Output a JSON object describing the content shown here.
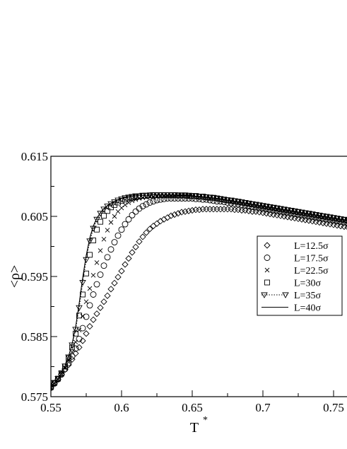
{
  "chart_data": {
    "type": "scatter",
    "title": "",
    "xlabel": "T",
    "xlabel_superscript": "*",
    "ylabel": "<ρ>",
    "xlim": [
      0.55,
      0.76
    ],
    "ylim": [
      0.575,
      0.615
    ],
    "x_ticks": [
      0.55,
      0.6,
      0.65,
      0.7,
      0.75
    ],
    "y_ticks": [
      0.575,
      0.585,
      0.595,
      0.605,
      0.615
    ],
    "x_tick_labels": [
      "0.55",
      "0.6",
      "0.65",
      "0.7",
      "0.75"
    ],
    "y_tick_labels": [
      "0.575",
      "0.585",
      "0.595",
      "0.605",
      "0.615"
    ],
    "grid": false,
    "legend_position": "right",
    "series": [
      {
        "name": "L=12.5σ",
        "marker": "diamond",
        "x": [
          0.55,
          0.5525,
          0.555,
          0.5575,
          0.56,
          0.5625,
          0.565,
          0.5675,
          0.57,
          0.5725,
          0.575,
          0.5775,
          0.58,
          0.5825,
          0.585,
          0.5875,
          0.59,
          0.5925,
          0.595,
          0.5975,
          0.6,
          0.6025,
          0.605,
          0.6075,
          0.61,
          0.6125,
          0.615,
          0.6175,
          0.62,
          0.6225,
          0.625,
          0.6275,
          0.63,
          0.6325,
          0.635,
          0.6375,
          0.64,
          0.6425,
          0.645,
          0.6475,
          0.65,
          0.6525,
          0.655,
          0.6575,
          0.66,
          0.6625,
          0.665,
          0.6675,
          0.67,
          0.6725,
          0.675,
          0.6775,
          0.68,
          0.6825,
          0.685,
          0.6875,
          0.69,
          0.6925,
          0.695,
          0.6975,
          0.7,
          0.7025,
          0.705,
          0.7075,
          0.71,
          0.7125,
          0.715,
          0.7175,
          0.72,
          0.7225,
          0.725,
          0.7275,
          0.73,
          0.7325,
          0.735,
          0.7375,
          0.74,
          0.7425,
          0.745,
          0.7475,
          0.75,
          0.7525,
          0.755,
          0.7575,
          0.76
        ],
        "y": [
          0.5765,
          0.5772,
          0.5779,
          0.5787,
          0.5795,
          0.5803,
          0.5812,
          0.5822,
          0.5832,
          0.5843,
          0.5855,
          0.5867,
          0.5878,
          0.5888,
          0.5898,
          0.5908,
          0.5918,
          0.5929,
          0.5939,
          0.5949,
          0.5959,
          0.597,
          0.598,
          0.599,
          0.5999,
          0.6008,
          0.6016,
          0.6023,
          0.6029,
          0.6034,
          0.6038,
          0.6042,
          0.6045,
          0.6048,
          0.6051,
          0.6053,
          0.6055,
          0.6057,
          0.6058,
          0.6059,
          0.606,
          0.6061,
          0.6061,
          0.6062,
          0.6062,
          0.6062,
          0.6062,
          0.6062,
          0.6062,
          0.6062,
          0.6062,
          0.6062,
          0.6061,
          0.6061,
          0.606,
          0.606,
          0.6059,
          0.6058,
          0.6058,
          0.6057,
          0.6056,
          0.6055,
          0.6054,
          0.6053,
          0.6052,
          0.6051,
          0.605,
          0.6049,
          0.6048,
          0.6047,
          0.6046,
          0.6045,
          0.6044,
          0.6043,
          0.6042,
          0.6041,
          0.604,
          0.6039,
          0.6038,
          0.6037,
          0.6036,
          0.6035,
          0.6034,
          0.6033,
          0.6032
        ]
      },
      {
        "name": "L=17.5σ",
        "marker": "circle",
        "x": [
          0.55,
          0.5525,
          0.555,
          0.5575,
          0.56,
          0.5625,
          0.565,
          0.5675,
          0.57,
          0.5725,
          0.575,
          0.5775,
          0.58,
          0.5825,
          0.585,
          0.5875,
          0.59,
          0.5925,
          0.595,
          0.5975,
          0.6,
          0.6025,
          0.605,
          0.6075,
          0.61,
          0.6125,
          0.615,
          0.6175,
          0.62,
          0.6225,
          0.625,
          0.6275,
          0.63,
          0.6325,
          0.635,
          0.6375,
          0.64,
          0.6425,
          0.645,
          0.6475,
          0.65,
          0.6525,
          0.655,
          0.6575,
          0.66,
          0.6625,
          0.665,
          0.6675,
          0.67,
          0.6725,
          0.675,
          0.6775,
          0.68,
          0.6825,
          0.685,
          0.6875,
          0.69,
          0.6925,
          0.695,
          0.6975,
          0.7,
          0.7025,
          0.705,
          0.7075,
          0.71,
          0.7125,
          0.715,
          0.7175,
          0.72,
          0.7225,
          0.725,
          0.7275,
          0.73,
          0.7325,
          0.735,
          0.7375,
          0.74,
          0.7425,
          0.745,
          0.7475,
          0.75,
          0.7525,
          0.755,
          0.7575,
          0.76
        ],
        "y": [
          0.5765,
          0.5772,
          0.5779,
          0.5787,
          0.5796,
          0.5806,
          0.5817,
          0.583,
          0.5846,
          0.5864,
          0.5883,
          0.5902,
          0.592,
          0.5937,
          0.5953,
          0.5968,
          0.5982,
          0.5995,
          0.6007,
          0.6018,
          0.6028,
          0.6037,
          0.6045,
          0.6052,
          0.6058,
          0.6063,
          0.6067,
          0.607,
          0.6073,
          0.6075,
          0.6077,
          0.6078,
          0.6079,
          0.608,
          0.608,
          0.608,
          0.608,
          0.608,
          0.608,
          0.608,
          0.608,
          0.6079,
          0.6079,
          0.6078,
          0.6078,
          0.6077,
          0.6076,
          0.6075,
          0.6075,
          0.6074,
          0.6073,
          0.6072,
          0.6071,
          0.607,
          0.6069,
          0.6068,
          0.6067,
          0.6066,
          0.6065,
          0.6064,
          0.6063,
          0.6062,
          0.6061,
          0.606,
          0.6059,
          0.6058,
          0.6057,
          0.6056,
          0.6055,
          0.6054,
          0.6053,
          0.6052,
          0.6051,
          0.605,
          0.6049,
          0.6048,
          0.6047,
          0.6046,
          0.6045,
          0.6044,
          0.6043,
          0.6042,
          0.6041,
          0.604,
          0.6039
        ]
      },
      {
        "name": "L=22.5σ",
        "marker": "cross",
        "x": [
          0.55,
          0.5525,
          0.555,
          0.5575,
          0.56,
          0.5625,
          0.565,
          0.5675,
          0.57,
          0.5725,
          0.575,
          0.5775,
          0.58,
          0.5825,
          0.585,
          0.5875,
          0.59,
          0.5925,
          0.595,
          0.5975,
          0.6,
          0.6025,
          0.605,
          0.6075,
          0.61,
          0.6125,
          0.615,
          0.6175,
          0.62,
          0.6225,
          0.625,
          0.6275,
          0.63,
          0.6325,
          0.635,
          0.6375,
          0.64,
          0.6425,
          0.645,
          0.6475,
          0.65,
          0.6525,
          0.655,
          0.6575,
          0.66,
          0.6625,
          0.665,
          0.6675,
          0.67,
          0.6725,
          0.675,
          0.6775,
          0.68,
          0.6825,
          0.685,
          0.6875,
          0.69,
          0.6925,
          0.695,
          0.6975,
          0.7,
          0.7025,
          0.705,
          0.7075,
          0.71,
          0.7125,
          0.715,
          0.7175,
          0.72,
          0.7225,
          0.725,
          0.7275,
          0.73,
          0.7325,
          0.735,
          0.7375,
          0.74,
          0.7425,
          0.745,
          0.7475,
          0.75,
          0.7525,
          0.755,
          0.7575,
          0.76
        ],
        "y": [
          0.5765,
          0.5772,
          0.5779,
          0.5788,
          0.5798,
          0.581,
          0.5824,
          0.5841,
          0.5861,
          0.5884,
          0.5908,
          0.593,
          0.5952,
          0.5973,
          0.5993,
          0.6012,
          0.6027,
          0.604,
          0.605,
          0.6058,
          0.6064,
          0.6069,
          0.6073,
          0.6076,
          0.6078,
          0.608,
          0.6081,
          0.6082,
          0.6083,
          0.6083,
          0.6084,
          0.6084,
          0.6084,
          0.6084,
          0.6084,
          0.6084,
          0.6084,
          0.6084,
          0.6084,
          0.6083,
          0.6083,
          0.6083,
          0.6082,
          0.6082,
          0.6081,
          0.608,
          0.608,
          0.6079,
          0.6078,
          0.6077,
          0.6076,
          0.6075,
          0.6074,
          0.6073,
          0.6072,
          0.6071,
          0.607,
          0.6069,
          0.6068,
          0.6067,
          0.6066,
          0.6065,
          0.6064,
          0.6063,
          0.6062,
          0.6061,
          0.606,
          0.6059,
          0.6058,
          0.6057,
          0.6056,
          0.6055,
          0.6054,
          0.6053,
          0.6052,
          0.6051,
          0.605,
          0.6049,
          0.6048,
          0.6047,
          0.6046,
          0.6045,
          0.6044,
          0.6043,
          0.6042
        ]
      },
      {
        "name": "L=30σ",
        "marker": "square",
        "x": [
          0.55,
          0.5525,
          0.555,
          0.5575,
          0.56,
          0.5625,
          0.565,
          0.5675,
          0.57,
          0.5725,
          0.575,
          0.5775,
          0.58,
          0.5825,
          0.585,
          0.5875,
          0.59,
          0.5925,
          0.595,
          0.5975,
          0.6,
          0.6025,
          0.605,
          0.6075,
          0.61,
          0.6125,
          0.615,
          0.6175,
          0.62,
          0.6225,
          0.625,
          0.6275,
          0.63,
          0.6325,
          0.635,
          0.6375,
          0.64,
          0.6425,
          0.645,
          0.6475,
          0.65,
          0.6525,
          0.655,
          0.6575,
          0.66,
          0.6625,
          0.665,
          0.6675,
          0.67,
          0.6725,
          0.675,
          0.6775,
          0.68,
          0.6825,
          0.685,
          0.6875,
          0.69,
          0.6925,
          0.695,
          0.6975,
          0.7,
          0.7025,
          0.705,
          0.7075,
          0.71,
          0.7125,
          0.715,
          0.7175,
          0.72,
          0.7225,
          0.725,
          0.7275,
          0.73,
          0.7325,
          0.735,
          0.7375,
          0.74,
          0.7425,
          0.745,
          0.7475,
          0.75,
          0.7525,
          0.755,
          0.7575,
          0.76
        ],
        "y": [
          0.5766,
          0.5773,
          0.578,
          0.5789,
          0.58,
          0.5814,
          0.5832,
          0.5855,
          0.5885,
          0.592,
          0.5955,
          0.5986,
          0.601,
          0.6028,
          0.6041,
          0.6051,
          0.6059,
          0.6065,
          0.6069,
          0.6073,
          0.6076,
          0.6078,
          0.608,
          0.6081,
          0.6082,
          0.6083,
          0.6084,
          0.6084,
          0.6085,
          0.6085,
          0.6085,
          0.6085,
          0.6085,
          0.6085,
          0.6085,
          0.6085,
          0.6085,
          0.6085,
          0.6085,
          0.6084,
          0.6084,
          0.6084,
          0.6083,
          0.6083,
          0.6082,
          0.6081,
          0.6081,
          0.608,
          0.6079,
          0.6078,
          0.6077,
          0.6076,
          0.6075,
          0.6074,
          0.6073,
          0.6072,
          0.6071,
          0.607,
          0.6069,
          0.6068,
          0.6067,
          0.6066,
          0.6065,
          0.6064,
          0.6063,
          0.6062,
          0.6061,
          0.606,
          0.6059,
          0.6058,
          0.6057,
          0.6056,
          0.6055,
          0.6054,
          0.6053,
          0.6052,
          0.6051,
          0.605,
          0.6049,
          0.6048,
          0.6047,
          0.6046,
          0.6045,
          0.6044,
          0.6043
        ]
      },
      {
        "name": "L=35σ",
        "marker": "triangle-down",
        "line": "dotted",
        "x": [
          0.55,
          0.5525,
          0.555,
          0.5575,
          0.56,
          0.5625,
          0.565,
          0.5675,
          0.57,
          0.5725,
          0.575,
          0.5775,
          0.58,
          0.5825,
          0.585,
          0.5875,
          0.59,
          0.5925,
          0.595,
          0.5975,
          0.6,
          0.6025,
          0.605,
          0.6075,
          0.61,
          0.6125,
          0.615,
          0.6175,
          0.62,
          0.6225,
          0.625,
          0.6275,
          0.63,
          0.6325,
          0.635,
          0.6375,
          0.64,
          0.6425,
          0.645,
          0.6475,
          0.65,
          0.6525,
          0.655,
          0.6575,
          0.66,
          0.6625,
          0.665,
          0.6675,
          0.67,
          0.6725,
          0.675,
          0.6775,
          0.68,
          0.6825,
          0.685,
          0.6875,
          0.69,
          0.6925,
          0.695,
          0.6975,
          0.7,
          0.7025,
          0.705,
          0.7075,
          0.71,
          0.7125,
          0.715,
          0.7175,
          0.72,
          0.7225,
          0.725,
          0.7275,
          0.73,
          0.7325,
          0.735,
          0.7375,
          0.74,
          0.7425,
          0.745,
          0.7475,
          0.75,
          0.7525,
          0.755,
          0.7575,
          0.76
        ],
        "y": [
          0.5766,
          0.5773,
          0.578,
          0.5789,
          0.5801,
          0.5816,
          0.5836,
          0.5862,
          0.5898,
          0.594,
          0.5978,
          0.6009,
          0.603,
          0.6045,
          0.6055,
          0.6062,
          0.6067,
          0.6071,
          0.6074,
          0.6077,
          0.6079,
          0.6081,
          0.6082,
          0.6083,
          0.6084,
          0.6084,
          0.6085,
          0.6085,
          0.6085,
          0.6086,
          0.6086,
          0.6086,
          0.6086,
          0.6086,
          0.6086,
          0.6086,
          0.6085,
          0.6085,
          0.6085,
          0.6085,
          0.6084,
          0.6084,
          0.6083,
          0.6083,
          0.6082,
          0.6082,
          0.6081,
          0.608,
          0.6079,
          0.6078,
          0.6077,
          0.6077,
          0.6076,
          0.6075,
          0.6074,
          0.6073,
          0.6072,
          0.6071,
          0.607,
          0.6069,
          0.6068,
          0.6067,
          0.6066,
          0.6065,
          0.6064,
          0.6063,
          0.6062,
          0.6061,
          0.606,
          0.6059,
          0.6058,
          0.6057,
          0.6056,
          0.6055,
          0.6054,
          0.6053,
          0.6052,
          0.6051,
          0.605,
          0.6049,
          0.6048,
          0.6047,
          0.6046,
          0.6045,
          0.6044
        ]
      },
      {
        "name": "L=40σ",
        "marker": "none",
        "line": "solid",
        "x": [
          0.55,
          0.5525,
          0.555,
          0.5575,
          0.56,
          0.5625,
          0.565,
          0.5675,
          0.57,
          0.5725,
          0.575,
          0.5775,
          0.58,
          0.5825,
          0.585,
          0.5875,
          0.59,
          0.5925,
          0.595,
          0.5975,
          0.6,
          0.6025,
          0.605,
          0.6075,
          0.61,
          0.6125,
          0.615,
          0.6175,
          0.62,
          0.6225,
          0.625,
          0.6275,
          0.63,
          0.6325,
          0.635,
          0.6375,
          0.64,
          0.6425,
          0.645,
          0.6475,
          0.65
        ],
        "y": [
          0.5766,
          0.5773,
          0.578,
          0.5789,
          0.5801,
          0.5817,
          0.5838,
          0.5866,
          0.5905,
          0.5948,
          0.5985,
          0.6014,
          0.6034,
          0.6047,
          0.6056,
          0.6063,
          0.6068,
          0.6072,
          0.6075,
          0.6078,
          0.608,
          0.6081,
          0.6082,
          0.6083,
          0.6084,
          0.6085,
          0.6085,
          0.6085,
          0.6086,
          0.6086,
          0.6086,
          0.6086,
          0.6086,
          0.6086,
          0.6086,
          0.6086,
          0.6086,
          0.6086,
          0.6086,
          0.6086,
          0.6086
        ]
      }
    ]
  }
}
